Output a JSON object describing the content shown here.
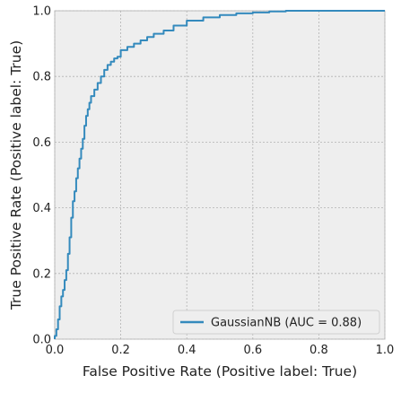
{
  "chart_data": {
    "type": "line",
    "title": "",
    "xlabel": "False Positive Rate (Positive label: True)",
    "ylabel": "True Positive Rate (Positive label: True)",
    "xlim": [
      0.0,
      1.0
    ],
    "ylim": [
      0.0,
      1.0
    ],
    "xticks": [
      0.0,
      0.2,
      0.4,
      0.6,
      0.8,
      1.0
    ],
    "yticks": [
      0.0,
      0.2,
      0.4,
      0.6,
      0.8,
      1.0
    ],
    "xtick_labels": [
      "0.0",
      "0.2",
      "0.4",
      "0.6",
      "0.8",
      "1.0"
    ],
    "ytick_labels": [
      "0.0",
      "0.2",
      "0.4",
      "0.6",
      "0.8",
      "1.0"
    ],
    "grid": true,
    "legend_position": "lower-right",
    "series": [
      {
        "name": "GaussianNB (AUC = 0.88)",
        "color": "#348abd",
        "x": [
          0.0,
          0.005,
          0.01,
          0.015,
          0.02,
          0.025,
          0.03,
          0.035,
          0.04,
          0.045,
          0.05,
          0.055,
          0.06,
          0.065,
          0.07,
          0.075,
          0.08,
          0.085,
          0.09,
          0.095,
          0.1,
          0.105,
          0.11,
          0.12,
          0.13,
          0.14,
          0.15,
          0.16,
          0.17,
          0.18,
          0.19,
          0.2,
          0.22,
          0.24,
          0.26,
          0.28,
          0.3,
          0.33,
          0.36,
          0.4,
          0.45,
          0.5,
          0.55,
          0.6,
          0.65,
          0.7,
          0.72,
          0.8,
          0.9,
          1.0
        ],
        "y": [
          0.0,
          0.01,
          0.03,
          0.06,
          0.1,
          0.13,
          0.15,
          0.18,
          0.21,
          0.26,
          0.31,
          0.37,
          0.42,
          0.45,
          0.49,
          0.52,
          0.55,
          0.58,
          0.61,
          0.65,
          0.68,
          0.7,
          0.72,
          0.74,
          0.76,
          0.78,
          0.8,
          0.82,
          0.835,
          0.845,
          0.855,
          0.86,
          0.88,
          0.89,
          0.9,
          0.91,
          0.92,
          0.93,
          0.94,
          0.955,
          0.97,
          0.98,
          0.987,
          0.992,
          0.995,
          0.998,
          1.0,
          1.0,
          1.0,
          1.0
        ]
      }
    ]
  }
}
